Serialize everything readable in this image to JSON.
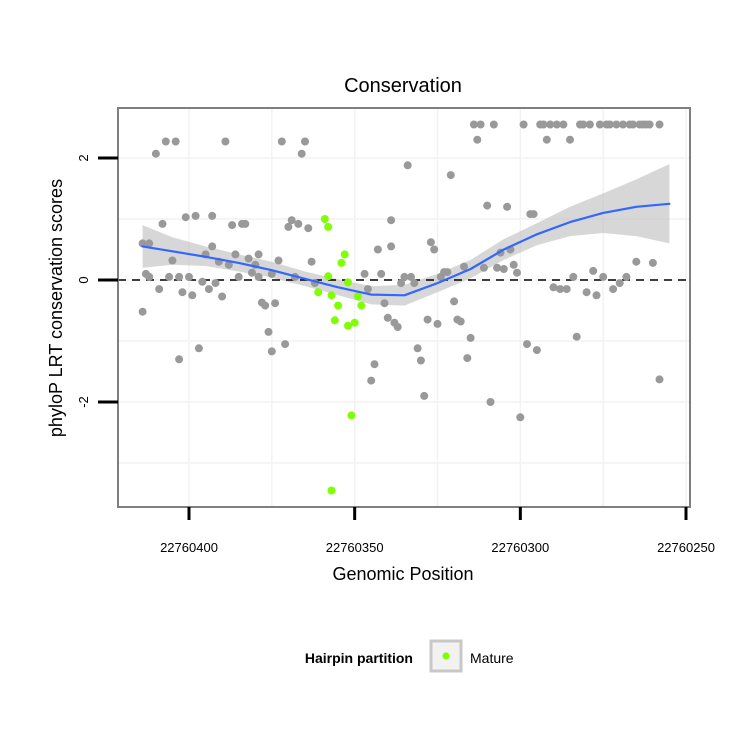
{
  "chart_data": {
    "type": "scatter",
    "title": "Conservation",
    "xlabel": "Genomic Position",
    "ylabel": "phyloP LRT conservation scores",
    "x_reversed": true,
    "xlim": [
      22760250,
      22760420
    ],
    "ylim": [
      -3.75,
      2.8
    ],
    "x_ticks": [
      22760400,
      22760350,
      22760300,
      22760250
    ],
    "x_tick_labels": [
      "22760400",
      "22760350",
      "22760300",
      "22760250"
    ],
    "y_ticks": [
      2,
      0,
      -2
    ],
    "y_tick_labels": [
      "2",
      "0",
      "-2"
    ],
    "grid": true,
    "hline": {
      "y": 0,
      "style": "dashed"
    },
    "colors": {
      "other": "#999999",
      "mature": "#7fff00",
      "smooth": "#3366ff",
      "ribbon": "#bdbdbd",
      "grid": "#f2f2f2",
      "border": "#7f7f7f"
    },
    "legend": {
      "title": "Hairpin partition",
      "entries": [
        "Mature"
      ],
      "placement": "bottom"
    },
    "smooth_line": {
      "x": [
        22760414,
        22760405,
        22760395,
        22760385,
        22760375,
        22760365,
        22760355,
        22760345,
        22760335,
        22760325,
        22760315,
        22760305,
        22760295,
        22760285,
        22760275,
        22760265,
        22760255
      ],
      "y": [
        0.55,
        0.47,
        0.38,
        0.28,
        0.16,
        0.02,
        -0.12,
        -0.24,
        -0.25,
        -0.05,
        0.18,
        0.5,
        0.75,
        0.95,
        1.1,
        1.2,
        1.25
      ],
      "lower": [
        0.2,
        0.25,
        0.23,
        0.14,
        0.04,
        -0.1,
        -0.25,
        -0.4,
        -0.42,
        -0.2,
        0.03,
        0.33,
        0.57,
        0.72,
        0.77,
        0.72,
        0.6
      ],
      "upper": [
        0.9,
        0.7,
        0.55,
        0.42,
        0.3,
        0.14,
        0.01,
        -0.1,
        -0.08,
        0.1,
        0.33,
        0.67,
        0.93,
        1.2,
        1.42,
        1.65,
        1.9
      ]
    },
    "series": [
      {
        "name": "Mature",
        "color": "#7fff00",
        "points": [
          [
            22760359,
            1.0
          ],
          [
            22760358,
            0.87
          ],
          [
            22760361,
            -0.2
          ],
          [
            22760358,
            0.06
          ],
          [
            22760357,
            -0.25
          ],
          [
            22760356,
            -0.66
          ],
          [
            22760355,
            -0.42
          ],
          [
            22760354,
            0.28
          ],
          [
            22760353,
            0.42
          ],
          [
            22760352,
            -0.04
          ],
          [
            22760352,
            -0.75
          ],
          [
            22760350,
            -0.7
          ],
          [
            22760349,
            -0.27
          ],
          [
            22760348,
            -0.42
          ],
          [
            22760351,
            -2.22
          ],
          [
            22760357,
            -3.45
          ]
        ]
      },
      {
        "color": "#999999",
        "points": [
          [
            22760414,
            -0.52
          ],
          [
            22760414,
            0.6
          ],
          [
            22760413,
            0.1
          ],
          [
            22760412,
            0.05
          ],
          [
            22760412,
            0.6
          ],
          [
            22760410,
            2.07
          ],
          [
            22760409,
            -0.15
          ],
          [
            22760408,
            0.92
          ],
          [
            22760407,
            2.27
          ],
          [
            22760406,
            0.05
          ],
          [
            22760405,
            0.32
          ],
          [
            22760404,
            2.27
          ],
          [
            22760403,
            -1.3
          ],
          [
            22760403,
            0.05
          ],
          [
            22760402,
            -0.2
          ],
          [
            22760401,
            1.03
          ],
          [
            22760400,
            0.05
          ],
          [
            22760399,
            -0.25
          ],
          [
            22760398,
            1.05
          ],
          [
            22760397,
            -1.12
          ],
          [
            22760396,
            -0.03
          ],
          [
            22760395,
            0.42
          ],
          [
            22760394,
            -0.15
          ],
          [
            22760393,
            1.05
          ],
          [
            22760393,
            0.55
          ],
          [
            22760392,
            -0.05
          ],
          [
            22760391,
            0.3
          ],
          [
            22760390,
            -0.27
          ],
          [
            22760389,
            2.27
          ],
          [
            22760388,
            0.25
          ],
          [
            22760387,
            0.9
          ],
          [
            22760386,
            0.42
          ],
          [
            22760385,
            0.05
          ],
          [
            22760384,
            0.92
          ],
          [
            22760383,
            0.92
          ],
          [
            22760382,
            0.35
          ],
          [
            22760381,
            0.12
          ],
          [
            22760380,
            0.25
          ],
          [
            22760379,
            0.42
          ],
          [
            22760379,
            0.05
          ],
          [
            22760378,
            -0.37
          ],
          [
            22760377,
            -0.42
          ],
          [
            22760376,
            -0.85
          ],
          [
            22760375,
            -1.17
          ],
          [
            22760375,
            0.1
          ],
          [
            22760374,
            -0.38
          ],
          [
            22760373,
            0.32
          ],
          [
            22760372,
            2.27
          ],
          [
            22760371,
            -1.05
          ],
          [
            22760370,
            0.87
          ],
          [
            22760369,
            0.98
          ],
          [
            22760368,
            0.05
          ],
          [
            22760367,
            0.92
          ],
          [
            22760366,
            2.07
          ],
          [
            22760365,
            2.27
          ],
          [
            22760364,
            0.85
          ],
          [
            22760363,
            0.3
          ],
          [
            22760362,
            -0.05
          ],
          [
            22760347,
            0.1
          ],
          [
            22760346,
            -0.15
          ],
          [
            22760345,
            -1.65
          ],
          [
            22760344,
            -1.38
          ],
          [
            22760343,
            0.5
          ],
          [
            22760342,
            0.1
          ],
          [
            22760341,
            -0.38
          ],
          [
            22760340,
            -0.62
          ],
          [
            22760339,
            0.55
          ],
          [
            22760339,
            0.98
          ],
          [
            22760338,
            -0.7
          ],
          [
            22760337,
            -0.77
          ],
          [
            22760336,
            -0.05
          ],
          [
            22760335,
            0.05
          ],
          [
            22760334,
            1.88
          ],
          [
            22760333,
            0.05
          ],
          [
            22760332,
            -0.05
          ],
          [
            22760331,
            -1.12
          ],
          [
            22760330,
            -1.32
          ],
          [
            22760329,
            -1.9
          ],
          [
            22760328,
            -0.65
          ],
          [
            22760327,
            0.62
          ],
          [
            22760326,
            0.5
          ],
          [
            22760325,
            -0.72
          ],
          [
            22760324,
            0.05
          ],
          [
            22760323,
            0.13
          ],
          [
            22760322,
            0.13
          ],
          [
            22760321,
            1.72
          ],
          [
            22760320,
            -0.35
          ],
          [
            22760319,
            -0.65
          ],
          [
            22760318,
            -0.68
          ],
          [
            22760317,
            0.22
          ],
          [
            22760316,
            -1.28
          ],
          [
            22760315,
            -0.95
          ],
          [
            22760314,
            2.55
          ],
          [
            22760313,
            2.3
          ],
          [
            22760312,
            2.55
          ],
          [
            22760311,
            0.2
          ],
          [
            22760310,
            1.22
          ],
          [
            22760309,
            -2.0
          ],
          [
            22760308,
            2.55
          ],
          [
            22760307,
            0.2
          ],
          [
            22760306,
            0.45
          ],
          [
            22760305,
            0.18
          ],
          [
            22760304,
            1.2
          ],
          [
            22760303,
            0.5
          ],
          [
            22760302,
            0.25
          ],
          [
            22760301,
            0.12
          ],
          [
            22760300,
            -2.25
          ],
          [
            22760299,
            2.55
          ],
          [
            22760298,
            -1.05
          ],
          [
            22760297,
            1.08
          ],
          [
            22760296,
            1.08
          ],
          [
            22760295,
            -1.15
          ],
          [
            22760294,
            2.55
          ],
          [
            22760293,
            2.55
          ],
          [
            22760292,
            2.3
          ],
          [
            22760291,
            2.55
          ],
          [
            22760290,
            -0.12
          ],
          [
            22760289,
            2.55
          ],
          [
            22760288,
            -0.15
          ],
          [
            22760287,
            2.55
          ],
          [
            22760286,
            -0.15
          ],
          [
            22760285,
            2.3
          ],
          [
            22760284,
            0.05
          ],
          [
            22760283,
            -0.93
          ],
          [
            22760282,
            2.55
          ],
          [
            22760281,
            2.55
          ],
          [
            22760280,
            -0.2
          ],
          [
            22760279,
            2.55
          ],
          [
            22760278,
            0.15
          ],
          [
            22760277,
            -0.25
          ],
          [
            22760276,
            2.55
          ],
          [
            22760275,
            0.05
          ],
          [
            22760274,
            2.55
          ],
          [
            22760273,
            2.55
          ],
          [
            22760272,
            -0.15
          ],
          [
            22760271,
            2.55
          ],
          [
            22760270,
            -0.05
          ],
          [
            22760269,
            2.55
          ],
          [
            22760268,
            0.05
          ],
          [
            22760267,
            2.55
          ],
          [
            22760266,
            2.55
          ],
          [
            22760265,
            0.3
          ],
          [
            22760264,
            2.55
          ],
          [
            22760263,
            2.55
          ],
          [
            22760262,
            2.55
          ],
          [
            22760261,
            2.55
          ],
          [
            22760260,
            0.28
          ],
          [
            22760258,
            2.55
          ],
          [
            22760258,
            -1.63
          ]
        ]
      }
    ]
  }
}
